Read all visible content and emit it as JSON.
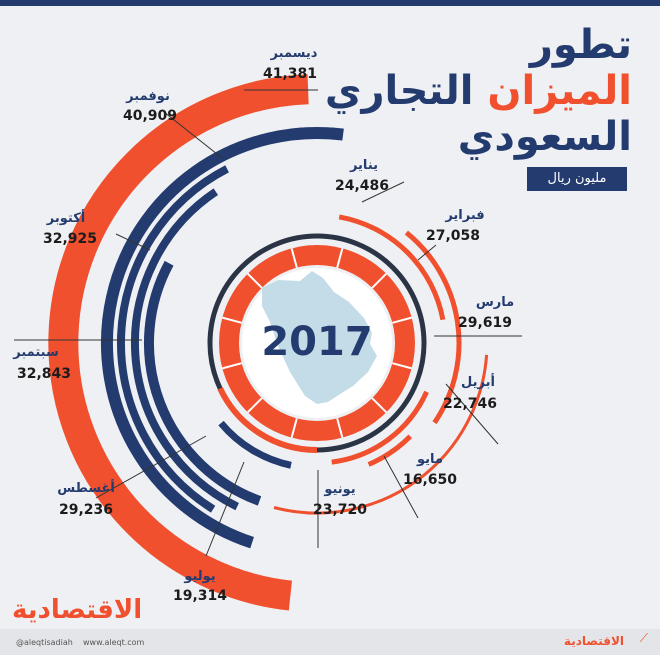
{
  "title": {
    "line1": "تطور",
    "line2_a": "الميزان",
    "line2_b": "التجاري",
    "line3": "السعودي"
  },
  "unit": "مليون ريال",
  "year": "2017",
  "footer": {
    "logo": "الاقتصادية",
    "twitter": "@aleqtisadiah",
    "website": "www.aleqt.com",
    "brand_small": "الاقتصادية",
    "brand_mark_icon": "chart-trend-icon"
  },
  "colors": {
    "orange": "#f0502e",
    "navy": "#233b6e",
    "background": "#eef0f3",
    "map": "#c3dce8"
  },
  "chart_data": {
    "type": "radial-bar",
    "unit": "مليون ريال",
    "categories": [
      "يناير",
      "فبراير",
      "مارس",
      "أبريل",
      "مايو",
      "يونيو",
      "يوليو",
      "أغسطس",
      "سبتمبر",
      "أكتوبر",
      "نوفمبر",
      "ديسمبر"
    ],
    "values": [
      24486,
      27058,
      29619,
      22746,
      16650,
      23720,
      19314,
      29236,
      32843,
      32925,
      40909,
      41381
    ],
    "labels": [
      "24,486",
      "27,058",
      "29,619",
      "22,746",
      "16,650",
      "23,720",
      "19,314",
      "29,236",
      "32,843",
      "32,925",
      "40,909",
      "41,381"
    ]
  }
}
